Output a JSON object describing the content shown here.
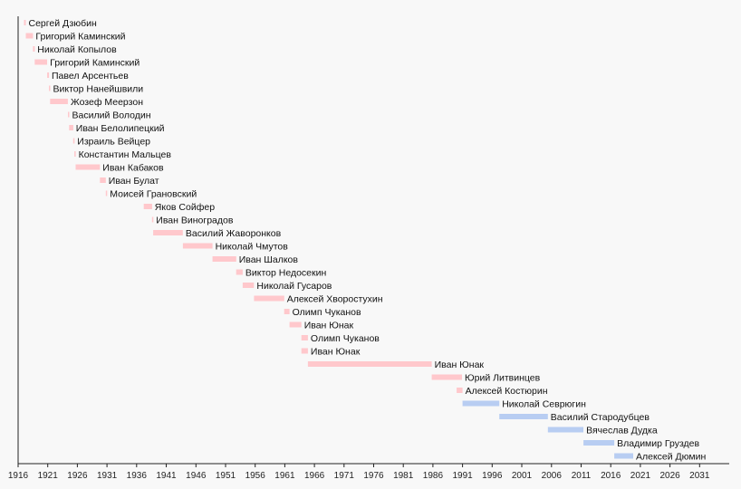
{
  "chart_data": {
    "type": "timeline",
    "x_axis": {
      "min": 1916,
      "max": 2036,
      "ticks": [
        1916,
        1921,
        1926,
        1931,
        1936,
        1941,
        1946,
        1951,
        1956,
        1961,
        1966,
        1971,
        1976,
        1981,
        1986,
        1991,
        1996,
        2001,
        2006,
        2011,
        2016,
        2021,
        2026,
        2031
      ]
    },
    "colors": {
      "soviet": "#ffc8cc",
      "russian": "#b8cdf2",
      "axis": "#222222"
    },
    "entries": [
      {
        "name": "Сергей Дзюбин",
        "start": 1917.0,
        "end": 1917.3,
        "era": "soviet"
      },
      {
        "name": "Григорий Каминский",
        "start": 1917.3,
        "end": 1918.5,
        "era": "soviet"
      },
      {
        "name": "Николай Копылов",
        "start": 1918.5,
        "end": 1918.8,
        "era": "soviet"
      },
      {
        "name": "Григорий Каминский",
        "start": 1918.8,
        "end": 1920.9,
        "era": "soviet"
      },
      {
        "name": "Павел Арсентьев",
        "start": 1920.9,
        "end": 1921.2,
        "era": "soviet"
      },
      {
        "name": "Виктор Нанейшвили",
        "start": 1921.2,
        "end": 1921.4,
        "era": "soviet"
      },
      {
        "name": "Жозеф Меерзон",
        "start": 1921.4,
        "end": 1924.4,
        "era": "soviet"
      },
      {
        "name": "Василий Володин",
        "start": 1924.4,
        "end": 1924.6,
        "era": "soviet"
      },
      {
        "name": "Иван Белолипецкий",
        "start": 1924.6,
        "end": 1925.3,
        "era": "soviet"
      },
      {
        "name": "Израиль Вейцер",
        "start": 1925.3,
        "end": 1925.5,
        "era": "soviet"
      },
      {
        "name": "Константин Мальцев",
        "start": 1925.5,
        "end": 1925.7,
        "era": "soviet"
      },
      {
        "name": "Иван Кабаков",
        "start": 1925.7,
        "end": 1929.8,
        "era": "soviet"
      },
      {
        "name": "Иван Булат",
        "start": 1929.8,
        "end": 1930.8,
        "era": "soviet"
      },
      {
        "name": "Моисей Грановский",
        "start": 1930.8,
        "end": 1931.0,
        "era": "soviet"
      },
      {
        "name": "Яков Сойфер",
        "start": 1937.2,
        "end": 1938.6,
        "era": "soviet"
      },
      {
        "name": "Иван Виноградов",
        "start": 1938.6,
        "end": 1938.8,
        "era": "soviet"
      },
      {
        "name": "Василий Жаворонков",
        "start": 1938.8,
        "end": 1943.8,
        "era": "soviet"
      },
      {
        "name": "Николай Чмутов",
        "start": 1943.8,
        "end": 1948.8,
        "era": "soviet"
      },
      {
        "name": "Иван Шалков",
        "start": 1948.8,
        "end": 1952.8,
        "era": "soviet"
      },
      {
        "name": "Виктор Недосекин",
        "start": 1952.8,
        "end": 1953.9,
        "era": "soviet"
      },
      {
        "name": "Николай Гусаров",
        "start": 1953.9,
        "end": 1955.8,
        "era": "soviet"
      },
      {
        "name": "Алексей Хворостухин",
        "start": 1955.8,
        "end": 1960.9,
        "era": "soviet"
      },
      {
        "name": "Олимп Чуканов",
        "start": 1960.9,
        "end": 1961.8,
        "era": "soviet"
      },
      {
        "name": "Иван Юнак",
        "start": 1961.8,
        "end": 1963.8,
        "era": "soviet"
      },
      {
        "name": "Олимп Чуканов",
        "start": 1963.8,
        "end": 1964.9,
        "era": "soviet"
      },
      {
        "name": "Иван Юнак",
        "start": 1963.8,
        "end": 1964.9,
        "era": "soviet"
      },
      {
        "name": "Иван Юнак",
        "start": 1964.9,
        "end": 1985.8,
        "era": "soviet"
      },
      {
        "name": "Юрий Литвинцев",
        "start": 1985.8,
        "end": 1990.9,
        "era": "soviet"
      },
      {
        "name": "Алексей Костюрин",
        "start": 1990.0,
        "end": 1991.0,
        "era": "soviet"
      },
      {
        "name": "Николай Севрюгин",
        "start": 1991.0,
        "end": 1997.2,
        "era": "russian"
      },
      {
        "name": "Василий Стародубцев",
        "start": 1997.2,
        "end": 2005.4,
        "era": "russian"
      },
      {
        "name": "Вячеслав Дудка",
        "start": 2005.4,
        "end": 2011.4,
        "era": "russian"
      },
      {
        "name": "Владимир Груздев",
        "start": 2011.4,
        "end": 2016.6,
        "era": "russian"
      },
      {
        "name": "Алексей Дюмин",
        "start": 2016.6,
        "end": 2019.8,
        "era": "russian"
      }
    ]
  }
}
